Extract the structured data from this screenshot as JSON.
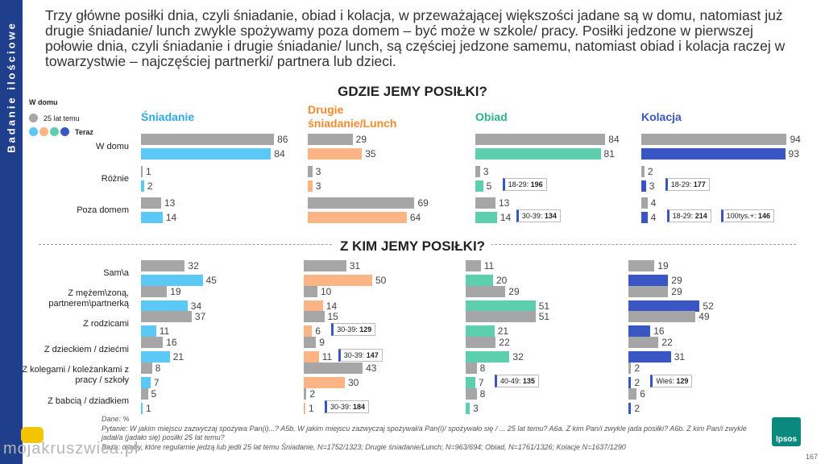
{
  "sidebar": {
    "label": "Badanie ilościowe"
  },
  "intro_text": "Trzy główne posiłki dnia, czyli śniadanie, obiad i kolacja, w przeważającej większości jadane są w domu, natomiast już drugie śniadanie/ lunch zwykle spożywamy poza domem – być może w szkole/ pracy. Posiłki jedzone w pierwszej połowie dnia, czyli śniadanie i drugie śniadanie/ lunch, są częściej jedzone samemu, natomiast obiad i kolacja raczej w towarzystwie – najczęściej partnerki/ partnera lub dzieci.",
  "legend": {
    "section": "W domu",
    "past": "25 lat temu",
    "now": "Teraz"
  },
  "colors": {
    "past": "#a6a6a6",
    "sniadanie": "#5bc8f5",
    "lunch": "#fbb584",
    "obiad": "#5ecfae",
    "kolacja": "#3a56c4",
    "sidebar": "#1f3e8c"
  },
  "chart_data": [
    {
      "type": "bar",
      "title": "GDZIE JEMY POSIŁKI?",
      "categories": [
        "W domu",
        "Różnie",
        "Poza domem"
      ],
      "series": [
        {
          "name": "Śniadanie",
          "past": [
            86,
            1,
            13
          ],
          "now": [
            84,
            2,
            14
          ]
        },
        {
          "name": "Drugie śniadanie/Lunch",
          "past": [
            29,
            3,
            69
          ],
          "now": [
            35,
            3,
            64
          ]
        },
        {
          "name": "Obiad",
          "past": [
            84,
            3,
            13
          ],
          "now": [
            81,
            5,
            14
          ]
        },
        {
          "name": "Kolacja",
          "past": [
            94,
            2,
            4
          ],
          "now": [
            93,
            3,
            4
          ]
        }
      ],
      "callouts": [
        {
          "series": 2,
          "row": 1,
          "text": "18-29: ",
          "value": "196"
        },
        {
          "series": 2,
          "row": 2,
          "text": "30-39: ",
          "value": "134"
        },
        {
          "series": 3,
          "row": 1,
          "text": "18-29: ",
          "value": "177"
        },
        {
          "series": 3,
          "row": 2,
          "text": "18-29: ",
          "value": "214"
        },
        {
          "series": 3,
          "row": 2,
          "text": "100tys.+: ",
          "value": "146"
        }
      ]
    },
    {
      "type": "bar",
      "title": "Z KIM JEMY POSIŁKI?",
      "categories": [
        "Sam\\a",
        "Z mężem\\zoną, partnerem\\partnerką",
        "Z rodzicami",
        "Z dzieckiem / dziećmi",
        "Z kolegami / koleżankami z pracy / szkoły",
        "Z babcią / dziadkiem"
      ],
      "series": [
        {
          "name": "Śniadanie",
          "past": [
            32,
            19,
            37,
            16,
            8,
            5
          ],
          "now": [
            45,
            34,
            11,
            21,
            7,
            1
          ]
        },
        {
          "name": "Drugie śniadanie/Lunch",
          "past": [
            31,
            10,
            15,
            9,
            43,
            2
          ],
          "now": [
            50,
            14,
            6,
            11,
            30,
            1
          ]
        },
        {
          "name": "Obiad",
          "past": [
            11,
            29,
            51,
            22,
            8,
            8
          ],
          "now": [
            20,
            51,
            21,
            32,
            7,
            3
          ]
        },
        {
          "name": "Kolacja",
          "past": [
            19,
            29,
            49,
            22,
            2,
            6
          ],
          "now": [
            29,
            52,
            16,
            31,
            2,
            2
          ]
        }
      ],
      "callouts": [
        {
          "series": 1,
          "row": 2,
          "text": "30-39: ",
          "value": "129"
        },
        {
          "series": 1,
          "row": 3,
          "text": "30-39: ",
          "value": "147"
        },
        {
          "series": 1,
          "row": 5,
          "text": "30-39: ",
          "value": "184"
        },
        {
          "series": 2,
          "row": 4,
          "text": "40-49: ",
          "value": "135"
        },
        {
          "series": 3,
          "row": 4,
          "text": "Wieś: ",
          "value": "129"
        }
      ]
    }
  ],
  "footnote": {
    "line1": "Dane: %",
    "line2": "Pytanie: W jakim miejscu zazwyczaj spożywa Pan(i)...? A5b. W jakim miejscu zazwyczaj spożywał/a Pan(i)/ spożywało się / ... 25 lat temu? A6a. Z kim Pan/i zwykle jada posiłki? A6b. Z kim Pan/i zwykle jadał/a (jadało się) posiłki 25 lat temu?",
    "line3": "Baza: osoby, które regularnie jedzą lub jedli 25 lat temu Śniadanie, N=1752/1323; Drugie śniadanie/Lunch; N=963/694; Obiad, N=1761/1326; Kolacje N=1637/1290"
  },
  "logo": "Ipsos",
  "page_number": "167",
  "watermark": "mojakruszwica.pl"
}
